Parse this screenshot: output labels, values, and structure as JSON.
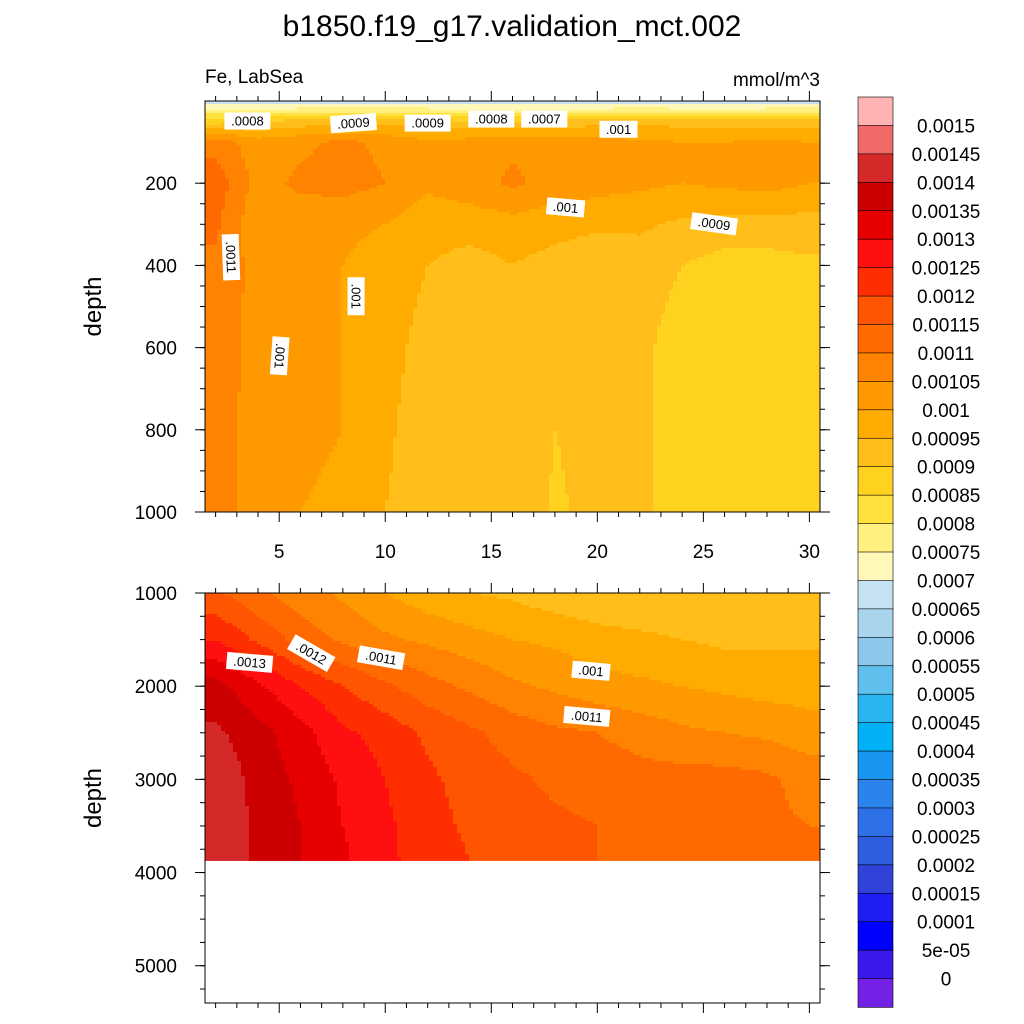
{
  "title": "b1850.f19_g17.validation_mct.002",
  "left_subtitle": "Fe, LabSea",
  "right_subtitle": "mmol/m^3",
  "colorbar_labels": [
    "0.0015",
    "0.00145",
    "0.0014",
    "0.00135",
    "0.0013",
    "0.00125",
    "0.0012",
    "0.00115",
    "0.0011",
    "0.00105",
    "0.001",
    "0.00095",
    "0.0009",
    "0.00085",
    "0.0008",
    "0.00075",
    "0.0007",
    "0.00065",
    "0.0006",
    "0.00055",
    "0.0005",
    "0.00045",
    "0.0004",
    "0.00035",
    "0.0003",
    "0.00025",
    "0.0002",
    "0.00015",
    "0.0001",
    "5e-05",
    "0"
  ],
  "colorbar_colors": [
    "#ffb3b5",
    "#f06868",
    "#d52828",
    "#cc0000",
    "#e60000",
    "#ff0f0f",
    "#ff2e00",
    "#ff5500",
    "#ff6a00",
    "#ff8200",
    "#ff9900",
    "#ffab00",
    "#ffbe1a",
    "#ffd21f",
    "#ffe03d",
    "#fff080",
    "#fff8b8",
    "#c6e2f2",
    "#a9d4ee",
    "#8dc8ec",
    "#5fc0ee",
    "#27b4f0",
    "#00b2f5",
    "#1896f0",
    "#2b83ec",
    "#2e70e8",
    "#2f5ddf",
    "#3042d8",
    "#1e1ef2",
    "#0000ff",
    "#3a17ea",
    "#7421e6"
  ],
  "chart_data": [
    {
      "type": "contour",
      "panel": "upper",
      "xlabel": "",
      "ylabel": "depth",
      "x_ticks": [
        5,
        10,
        15,
        20,
        25,
        30
      ],
      "y_ticks": [
        200,
        400,
        600,
        800,
        1000
      ],
      "xlim": [
        1.5,
        30.5
      ],
      "ylim": [
        1000,
        0
      ],
      "depth_levels": [
        5,
        50,
        100,
        200,
        300,
        400,
        600,
        800,
        1000
      ],
      "columns": [
        2,
        4,
        6,
        8,
        10,
        12,
        14,
        16,
        18,
        20,
        22,
        24,
        26,
        28,
        30
      ],
      "values": [
        [
          0.00068,
          0.00068,
          0.00068,
          0.00068,
          0.00068,
          0.00068,
          0.00067,
          0.00067,
          0.00067,
          0.00067,
          0.00068,
          0.00067,
          0.00067,
          0.00068,
          0.00068
        ],
        [
          0.00088,
          0.0009,
          0.00092,
          0.00093,
          0.00093,
          0.00092,
          0.00091,
          0.00091,
          0.00092,
          0.00093,
          0.00094,
          0.00093,
          0.00092,
          0.00092,
          0.00093
        ],
        [
          0.00108,
          0.00102,
          0.00104,
          0.00106,
          0.00104,
          0.00101,
          0.00102,
          0.00104,
          0.00103,
          0.00102,
          0.00101,
          0.001,
          0.001,
          0.00101,
          0.001
        ],
        [
          0.00113,
          0.00103,
          0.00106,
          0.00107,
          0.00105,
          0.00101,
          0.00103,
          0.00106,
          0.00103,
          0.00102,
          0.00101,
          0.001,
          0.00101,
          0.00102,
          0.001
        ],
        [
          0.00111,
          0.00101,
          0.00102,
          0.00101,
          0.001,
          0.00097,
          0.00097,
          0.00098,
          0.00097,
          0.00096,
          0.00096,
          0.00094,
          0.00093,
          0.00093,
          0.00093
        ],
        [
          0.00109,
          0.00103,
          0.00101,
          0.001,
          0.00098,
          0.00095,
          0.00093,
          0.00095,
          0.00093,
          0.00091,
          0.00092,
          0.0009,
          0.00088,
          0.00088,
          0.00089
        ],
        [
          0.00108,
          0.00103,
          0.00102,
          0.001,
          0.00097,
          0.00093,
          0.00092,
          0.00095,
          0.00091,
          0.00091,
          0.00091,
          0.00088,
          0.00087,
          0.00088,
          0.00089
        ],
        [
          0.00107,
          0.00103,
          0.00101,
          0.001,
          0.00096,
          0.00092,
          0.00092,
          0.00095,
          0.0009,
          0.00092,
          0.00091,
          0.00088,
          0.00087,
          0.00088,
          0.00089
        ],
        [
          0.00107,
          0.00103,
          0.001,
          0.00099,
          0.00095,
          0.00092,
          0.00092,
          0.00095,
          0.00089,
          0.00092,
          0.00091,
          0.00088,
          0.00088,
          0.00088,
          0.00089
        ]
      ],
      "contour_labels": [
        ".0008",
        ".0009",
        ".0009",
        ".0008",
        ".0007",
        ".001",
        ".001",
        ".0009",
        ".0011",
        ".001",
        ".001"
      ]
    },
    {
      "type": "contour",
      "panel": "lower",
      "xlabel": "",
      "ylabel": "depth",
      "y_ticks": [
        1000,
        2000,
        3000,
        4000,
        5000
      ],
      "ylim": [
        5400,
        1000
      ],
      "max_data_depth": 3870,
      "depth_levels": [
        1000,
        1500,
        2000,
        2500,
        3000,
        3500,
        3870
      ],
      "columns": [
        2,
        4,
        6,
        8,
        10,
        12,
        14,
        16,
        18,
        20,
        22,
        24,
        26,
        28,
        30
      ],
      "values": [
        [
          0.00116,
          0.00111,
          0.00107,
          0.00104,
          0.001,
          0.00097,
          0.00095,
          0.00094,
          0.00092,
          0.00091,
          0.00091,
          0.00091,
          0.0009,
          0.0009,
          0.00091
        ],
        [
          0.00125,
          0.00119,
          0.00113,
          0.00109,
          0.00106,
          0.00104,
          0.00102,
          0.001,
          0.00099,
          0.00097,
          0.00096,
          0.00095,
          0.00094,
          0.00094,
          0.00094
        ],
        [
          0.00137,
          0.00131,
          0.00125,
          0.0012,
          0.00116,
          0.00112,
          0.00109,
          0.00106,
          0.00104,
          0.00102,
          0.00101,
          0.001,
          0.00099,
          0.00098,
          0.00098
        ],
        [
          0.00141,
          0.00137,
          0.00132,
          0.00126,
          0.00123,
          0.00119,
          0.00116,
          0.00113,
          0.00111,
          0.0011,
          0.00108,
          0.00106,
          0.00105,
          0.00104,
          0.00102
        ],
        [
          0.00144,
          0.00138,
          0.00134,
          0.00129,
          0.00125,
          0.00121,
          0.00118,
          0.00116,
          0.00114,
          0.00113,
          0.00112,
          0.00112,
          0.00112,
          0.00111,
          0.00108
        ],
        [
          0.00144,
          0.00139,
          0.00135,
          0.0013,
          0.00126,
          0.00122,
          0.00119,
          0.00117,
          0.00116,
          0.00115,
          0.00114,
          0.00112,
          0.00112,
          0.00111,
          0.0011
        ],
        [
          0.00144,
          0.00139,
          0.00135,
          0.00131,
          0.00126,
          0.00123,
          0.0012,
          0.00117,
          0.00116,
          0.00115,
          0.00114,
          0.00113,
          0.00112,
          0.00111,
          0.0011
        ]
      ],
      "contour_labels": [
        ".0013",
        ".0012",
        ".0011",
        ".001",
        ".0011"
      ]
    }
  ]
}
